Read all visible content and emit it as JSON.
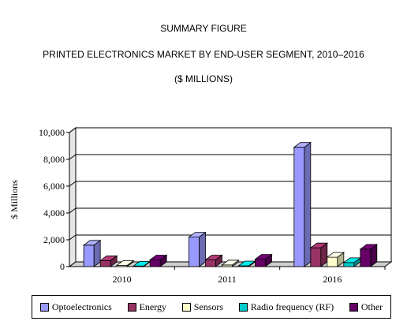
{
  "titles": {
    "line1": "SUMMARY FIGURE",
    "line2": "PRINTED ELECTRONICS MARKET BY END-USER SEGMENT, 2010–2016",
    "line3": "($ MILLIONS)"
  },
  "chart_data": {
    "type": "bar",
    "style": "3d-clustered",
    "title": "PRINTED ELECTRONICS MARKET BY END-USER SEGMENT, 2010–2016",
    "ylabel": "$ Millions",
    "xlabel": "",
    "ylim": [
      0,
      10000
    ],
    "yticks": [
      0,
      2000,
      4000,
      6000,
      8000,
      10000
    ],
    "ytick_labels": [
      "0",
      "2,000",
      "4,000",
      "6,000",
      "8,000",
      "10,000"
    ],
    "categories": [
      "2010",
      "2011",
      "2016"
    ],
    "grid": true,
    "legend_position": "bottom",
    "series": [
      {
        "name": "Optoelectronics",
        "color": "#9999ff",
        "values": [
          1600,
          2200,
          8900
        ]
      },
      {
        "name": "Energy",
        "color": "#993366",
        "values": [
          450,
          500,
          1400
        ]
      },
      {
        "name": "Sensors",
        "color": "#ffffcc",
        "values": [
          90,
          120,
          700
        ]
      },
      {
        "name": "Radio frequency (RF)",
        "color": "#00cccc",
        "values": [
          40,
          60,
          300
        ]
      },
      {
        "name": "Other",
        "color": "#660066",
        "values": [
          500,
          550,
          1300
        ]
      }
    ]
  }
}
